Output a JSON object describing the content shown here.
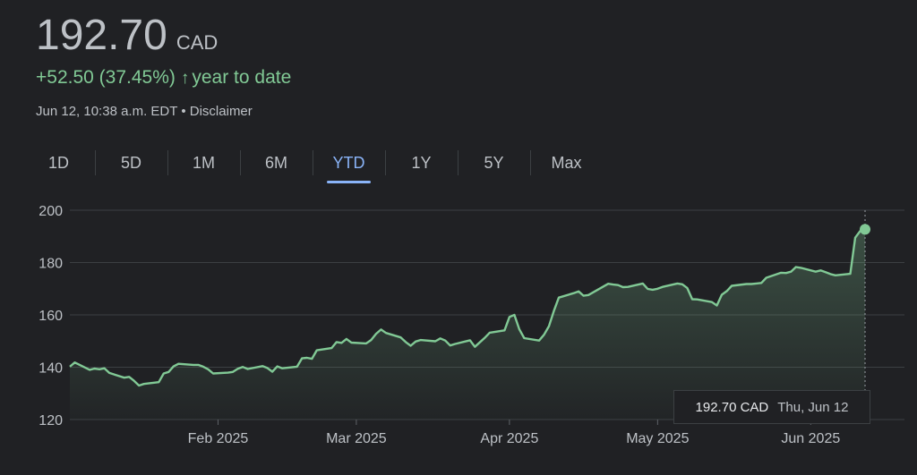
{
  "header": {
    "price": "192.70",
    "currency": "CAD",
    "change": "+52.50 (37.45%)",
    "change_period": "year to date",
    "timestamp": "Jun 12, 10:38 a.m. EDT",
    "separator": "•",
    "disclaimer": "Disclaimer",
    "positive_color": "#81c995"
  },
  "tabs": [
    {
      "label": "1D"
    },
    {
      "label": "5D"
    },
    {
      "label": "1M"
    },
    {
      "label": "6M"
    },
    {
      "label": "YTD",
      "active": true
    },
    {
      "label": "1Y"
    },
    {
      "label": "5Y"
    },
    {
      "label": "Max"
    }
  ],
  "tooltip": {
    "value": "192.70 CAD",
    "date": "Thu, Jun 12"
  },
  "chart_data": {
    "type": "area",
    "ylim": [
      120,
      200
    ],
    "y_ticks": [
      200,
      180,
      160,
      140,
      120
    ],
    "x_range": [
      "2025-01-02",
      "2025-06-12"
    ],
    "x_ticks": [
      {
        "label": "Feb 2025",
        "date": "2025-02-01"
      },
      {
        "label": "Mar 2025",
        "date": "2025-03-01"
      },
      {
        "label": "Apr 2025",
        "date": "2025-04-01"
      },
      {
        "label": "May 2025",
        "date": "2025-05-01"
      },
      {
        "label": "Jun 2025",
        "date": "2025-06-01"
      }
    ],
    "grid": true,
    "line_color": "#81c995",
    "series": [
      {
        "points": [
          [
            "2025-01-02",
            140.2
          ],
          [
            "2025-01-03",
            141.8
          ],
          [
            "2025-01-06",
            139.0
          ],
          [
            "2025-01-07",
            139.5
          ],
          [
            "2025-01-08",
            139.2
          ],
          [
            "2025-01-09",
            139.6
          ],
          [
            "2025-01-10",
            137.8
          ],
          [
            "2025-01-13",
            136.0
          ],
          [
            "2025-01-14",
            136.3
          ],
          [
            "2025-01-15",
            134.8
          ],
          [
            "2025-01-16",
            133.0
          ],
          [
            "2025-01-17",
            133.6
          ],
          [
            "2025-01-20",
            134.3
          ],
          [
            "2025-01-21",
            137.6
          ],
          [
            "2025-01-22",
            138.2
          ],
          [
            "2025-01-23",
            140.3
          ],
          [
            "2025-01-24",
            141.3
          ],
          [
            "2025-01-27",
            140.9
          ],
          [
            "2025-01-28",
            140.9
          ],
          [
            "2025-01-29",
            140.2
          ],
          [
            "2025-01-30",
            139.2
          ],
          [
            "2025-01-31",
            137.6
          ],
          [
            "2025-02-03",
            137.9
          ],
          [
            "2025-02-04",
            138.2
          ],
          [
            "2025-02-05",
            139.4
          ],
          [
            "2025-02-06",
            140.1
          ],
          [
            "2025-02-07",
            139.3
          ],
          [
            "2025-02-10",
            140.4
          ],
          [
            "2025-02-11",
            139.7
          ],
          [
            "2025-02-12",
            138.3
          ],
          [
            "2025-02-13",
            140.3
          ],
          [
            "2025-02-14",
            139.6
          ],
          [
            "2025-02-17",
            140.2
          ],
          [
            "2025-02-18",
            143.4
          ],
          [
            "2025-02-19",
            143.6
          ],
          [
            "2025-02-20",
            143.2
          ],
          [
            "2025-02-21",
            146.5
          ],
          [
            "2025-02-24",
            147.3
          ],
          [
            "2025-02-25",
            149.6
          ],
          [
            "2025-02-26",
            149.3
          ],
          [
            "2025-02-27",
            150.8
          ],
          [
            "2025-02-28",
            149.4
          ],
          [
            "2025-03-03",
            149.1
          ],
          [
            "2025-03-04",
            150.4
          ],
          [
            "2025-03-05",
            152.8
          ],
          [
            "2025-03-06",
            154.4
          ],
          [
            "2025-03-07",
            153.1
          ],
          [
            "2025-03-10",
            151.4
          ],
          [
            "2025-03-11",
            149.6
          ],
          [
            "2025-03-12",
            148.2
          ],
          [
            "2025-03-13",
            149.8
          ],
          [
            "2025-03-14",
            150.4
          ],
          [
            "2025-03-17",
            149.9
          ],
          [
            "2025-03-18",
            151.0
          ],
          [
            "2025-03-19",
            150.2
          ],
          [
            "2025-03-20",
            148.3
          ],
          [
            "2025-03-21",
            148.9
          ],
          [
            "2025-03-24",
            150.3
          ],
          [
            "2025-03-25",
            147.8
          ],
          [
            "2025-03-26",
            149.5
          ],
          [
            "2025-03-27",
            151.2
          ],
          [
            "2025-03-28",
            153.2
          ],
          [
            "2025-03-31",
            154.1
          ],
          [
            "2025-04-01",
            159.2
          ],
          [
            "2025-04-02",
            160.0
          ],
          [
            "2025-04-03",
            154.5
          ],
          [
            "2025-04-04",
            151.1
          ],
          [
            "2025-04-07",
            150.2
          ],
          [
            "2025-04-08",
            152.4
          ],
          [
            "2025-04-09",
            155.7
          ],
          [
            "2025-04-10",
            161.5
          ],
          [
            "2025-04-11",
            166.6
          ],
          [
            "2025-04-14",
            168.3
          ],
          [
            "2025-04-15",
            169.0
          ],
          [
            "2025-04-16",
            167.3
          ],
          [
            "2025-04-17",
            167.6
          ],
          [
            "2025-04-21",
            171.9
          ],
          [
            "2025-04-22",
            171.6
          ],
          [
            "2025-04-23",
            171.4
          ],
          [
            "2025-04-24",
            170.6
          ],
          [
            "2025-04-25",
            170.7
          ],
          [
            "2025-04-28",
            172.0
          ],
          [
            "2025-04-29",
            169.9
          ],
          [
            "2025-04-30",
            169.6
          ],
          [
            "2025-05-01",
            170.0
          ],
          [
            "2025-05-02",
            170.7
          ],
          [
            "2025-05-05",
            172.0
          ],
          [
            "2025-05-06",
            171.7
          ],
          [
            "2025-05-07",
            170.3
          ],
          [
            "2025-05-08",
            166.0
          ],
          [
            "2025-05-09",
            165.9
          ],
          [
            "2025-05-12",
            164.9
          ],
          [
            "2025-05-13",
            163.6
          ],
          [
            "2025-05-14",
            167.7
          ],
          [
            "2025-05-15",
            169.1
          ],
          [
            "2025-05-16",
            171.1
          ],
          [
            "2025-05-19",
            171.8
          ],
          [
            "2025-05-20",
            171.8
          ],
          [
            "2025-05-21",
            172.0
          ],
          [
            "2025-05-22",
            172.2
          ],
          [
            "2025-05-23",
            174.2
          ],
          [
            "2025-05-26",
            176.1
          ],
          [
            "2025-05-27",
            176.0
          ],
          [
            "2025-05-28",
            176.5
          ],
          [
            "2025-05-29",
            178.3
          ],
          [
            "2025-05-30",
            178.0
          ],
          [
            "2025-06-02",
            176.5
          ],
          [
            "2025-06-03",
            177.0
          ],
          [
            "2025-06-04",
            176.3
          ],
          [
            "2025-06-05",
            175.6
          ],
          [
            "2025-06-06",
            175.1
          ],
          [
            "2025-06-09",
            175.7
          ],
          [
            "2025-06-10",
            189.5
          ],
          [
            "2025-06-11",
            192.0
          ],
          [
            "2025-06-12",
            192.7
          ]
        ]
      }
    ]
  }
}
